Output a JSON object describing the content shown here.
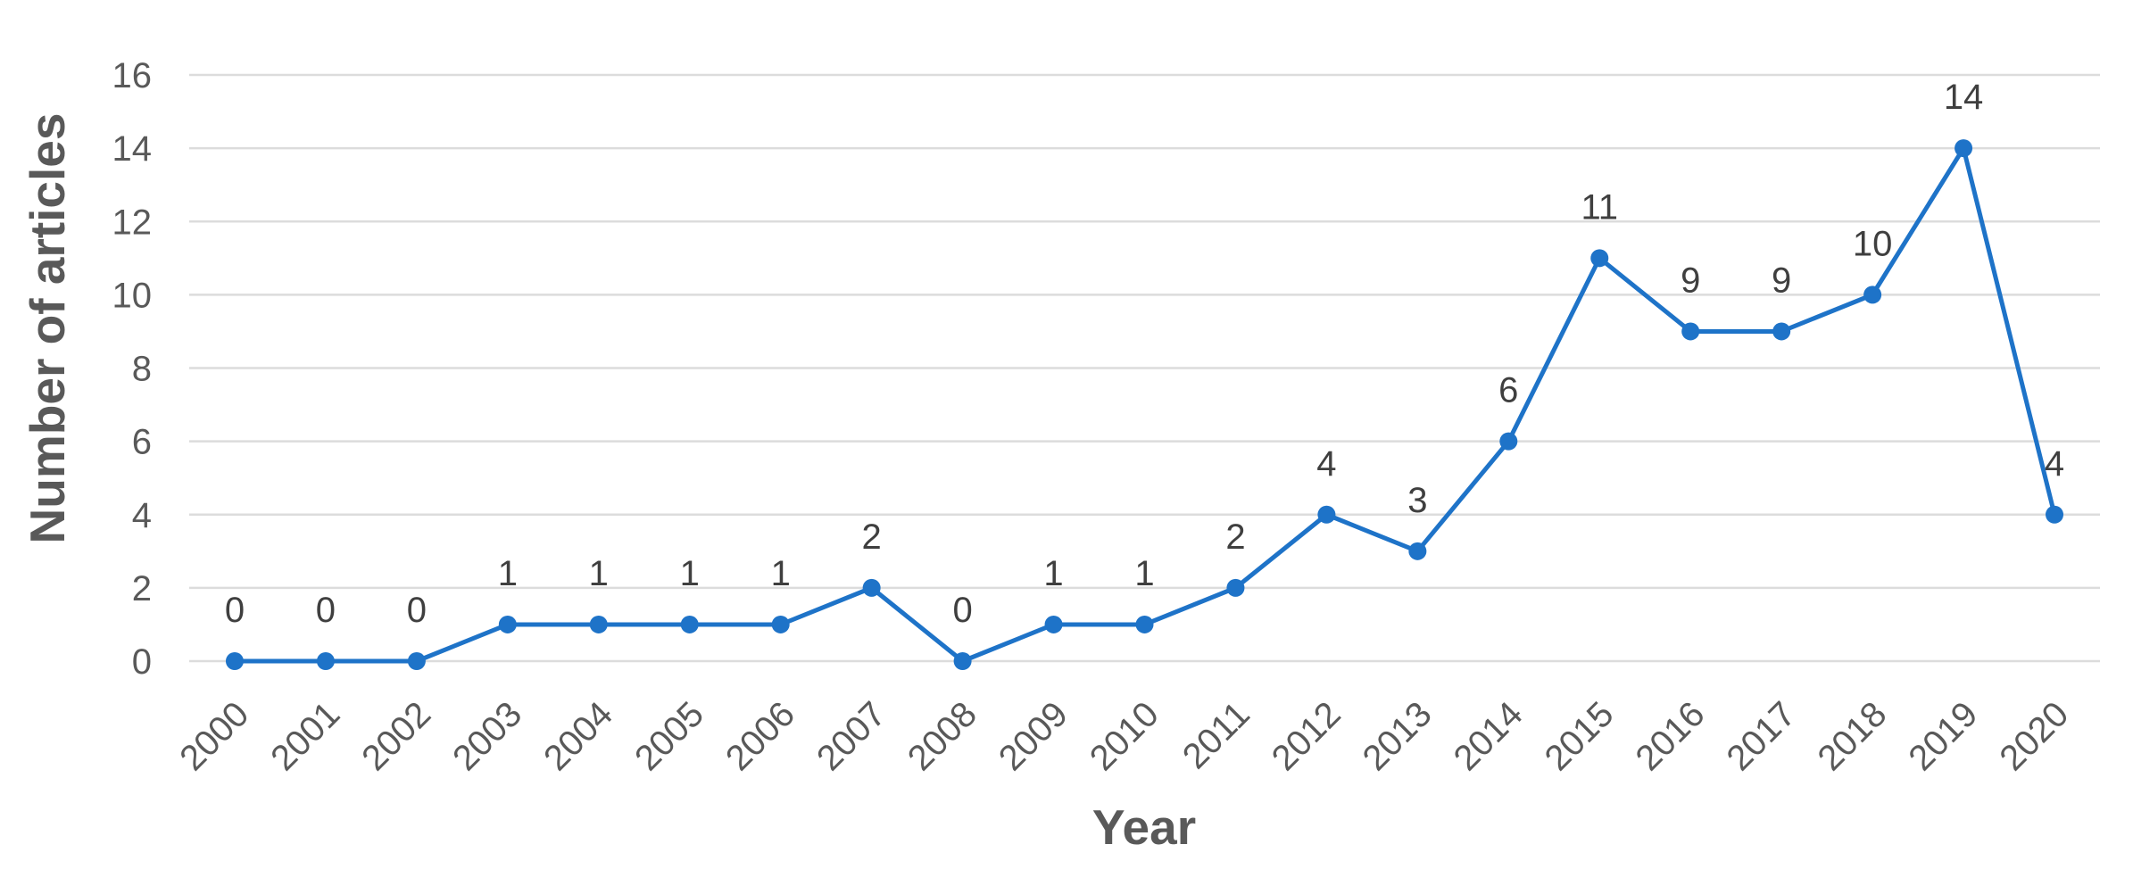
{
  "chart_data": {
    "type": "line",
    "title": "",
    "categories": [
      "2000",
      "2001",
      "2002",
      "2003",
      "2004",
      "2005",
      "2006",
      "2007",
      "2008",
      "2009",
      "2010",
      "2011",
      "2012",
      "2013",
      "2014",
      "2015",
      "2016",
      "2017",
      "2018",
      "2019",
      "2020"
    ],
    "values": [
      0,
      0,
      0,
      1,
      1,
      1,
      1,
      2,
      0,
      1,
      1,
      2,
      4,
      3,
      6,
      11,
      9,
      9,
      10,
      14,
      4
    ],
    "data_labels": [
      "0",
      "0",
      "0",
      "1",
      "1",
      "1",
      "1",
      "2",
      "0",
      "1",
      "1",
      "2",
      "4",
      "3",
      "6",
      "11",
      "9",
      "9",
      "10",
      "14",
      "4"
    ],
    "xlabel": "Year",
    "ylabel": "Number of articles",
    "ylim": [
      0,
      16
    ],
    "yticks": [
      0,
      2,
      4,
      6,
      8,
      10,
      12,
      14,
      16
    ],
    "grid": "horizontal-only",
    "legend_position": "none",
    "marker_style": "filled-circle",
    "colors": {
      "line": "#1E73C8",
      "marker": "#1E73C8",
      "gridline": "#DCDCDC",
      "axis_text": "#595959",
      "data_label_text": "#3F3F3F",
      "background": "#FFFFFF"
    }
  }
}
